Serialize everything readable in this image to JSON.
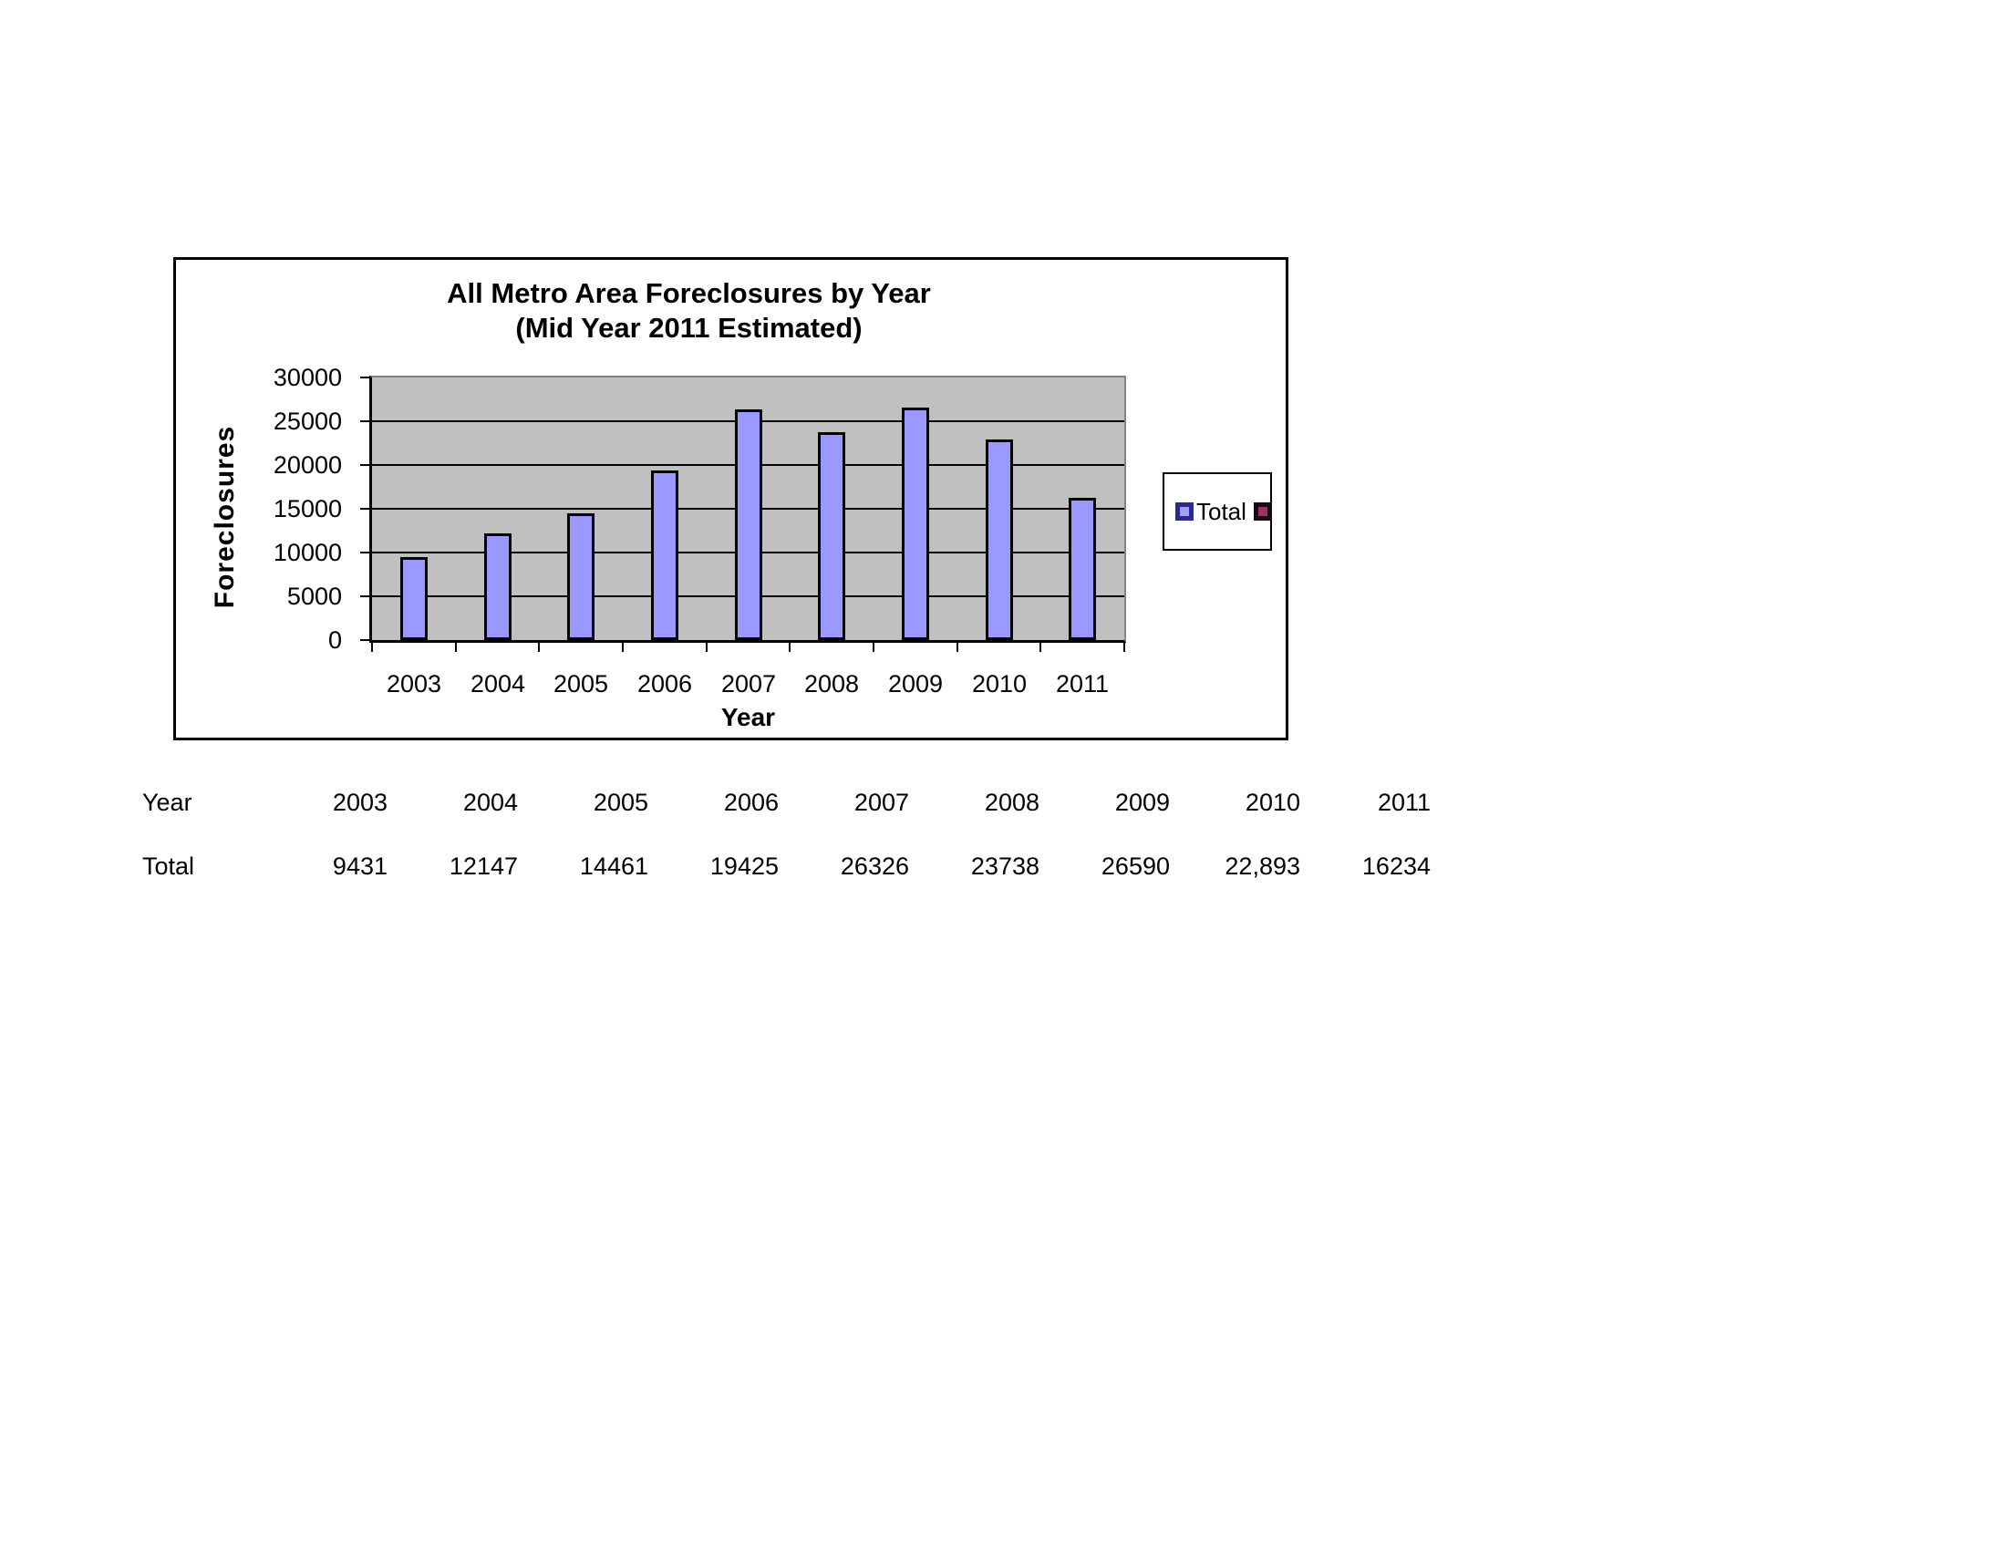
{
  "chart": {
    "title_line1": "All Metro Area Foreclosures by Year",
    "title_line2": "(Mid Year 2011 Estimated)",
    "y_axis_title": "Foreclosures",
    "x_axis_title": "Year",
    "legend": {
      "series1_label": "Total",
      "series2_label": ""
    },
    "colors": {
      "bar_fill": "#9999FF",
      "bar_border": "#000000",
      "plot_background": "#C0C0C0",
      "legend_marker1_fill": "#A2A2F2",
      "legend_marker1_border": "#2B2B8F",
      "legend_marker2_fill": "#993366"
    }
  },
  "chart_data": {
    "type": "bar",
    "title": "All Metro Area Foreclosures by Year (Mid Year 2011 Estimated)",
    "xlabel": "Year",
    "ylabel": "Foreclosures",
    "categories": [
      "2003",
      "2004",
      "2005",
      "2006",
      "2007",
      "2008",
      "2009",
      "2010",
      "2011"
    ],
    "series": [
      {
        "name": "Total",
        "values": [
          9431,
          12147,
          14461,
          19425,
          26326,
          23738,
          26590,
          22893,
          16234
        ]
      }
    ],
    "ylim": [
      0,
      30000
    ],
    "yticks": [
      0,
      5000,
      10000,
      15000,
      20000,
      25000,
      30000
    ],
    "grid": true,
    "legend_position": "right"
  },
  "table": {
    "row1_label": "Year",
    "row2_label": "Total",
    "years": [
      "2003",
      "2004",
      "2005",
      "2006",
      "2007",
      "2008",
      "2009",
      "2010",
      "2011"
    ],
    "totals": [
      "9431",
      "12147",
      "14461",
      "19425",
      "26326",
      "23738",
      "26590",
      "22,893",
      "16234"
    ]
  }
}
